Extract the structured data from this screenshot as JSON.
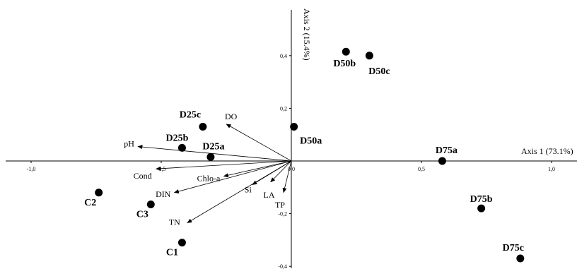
{
  "chart_data": {
    "type": "scatter",
    "title": "",
    "xlabel": "Axis 1 (73.1%)",
    "ylabel": "Axis 2 (15.4%)",
    "xlim": [
      -1.08,
      1.18
    ],
    "ylim": [
      -0.41,
      0.57
    ],
    "x_ticks": [
      {
        "value": -1.0,
        "label": "-1,0"
      },
      {
        "value": -0.5,
        "label": "-0,5"
      },
      {
        "value": 0.0,
        "label": "0,0"
      },
      {
        "value": 0.5,
        "label": "0,5"
      },
      {
        "value": 1.0,
        "label": "1,0"
      }
    ],
    "y_ticks": [
      {
        "value": 0.4,
        "label": "0,4"
      },
      {
        "value": 0.2,
        "label": "0,2"
      },
      {
        "value": -0.2,
        "label": "-0,2"
      },
      {
        "value": -0.4,
        "label": "-0,4"
      }
    ],
    "grid": false,
    "legend": "none",
    "sites": [
      {
        "name": "D50b",
        "x": 0.21,
        "y": 0.415
      },
      {
        "name": "D50c",
        "x": 0.3,
        "y": 0.4
      },
      {
        "name": "D50a",
        "x": 0.01,
        "y": 0.13
      },
      {
        "name": "D25c",
        "x": -0.34,
        "y": 0.13
      },
      {
        "name": "D25b",
        "x": -0.42,
        "y": 0.05
      },
      {
        "name": "D25a",
        "x": -0.31,
        "y": 0.015
      },
      {
        "name": "D75a",
        "x": 0.58,
        "y": 0.0
      },
      {
        "name": "C2",
        "x": -0.74,
        "y": -0.12
      },
      {
        "name": "C3",
        "x": -0.54,
        "y": -0.165
      },
      {
        "name": "C1",
        "x": -0.42,
        "y": -0.31
      },
      {
        "name": "D75b",
        "x": 0.73,
        "y": -0.18
      },
      {
        "name": "D75c",
        "x": 0.88,
        "y": -0.37
      }
    ],
    "variables": [
      {
        "name": "DO",
        "x": -0.25,
        "y": 0.14
      },
      {
        "name": "pH",
        "x": -0.59,
        "y": 0.055
      },
      {
        "name": "Cond",
        "x": -0.52,
        "y": -0.03
      },
      {
        "name": "Chlo-a",
        "x": -0.26,
        "y": -0.058
      },
      {
        "name": "DIN",
        "x": -0.45,
        "y": -0.12
      },
      {
        "name": "Si",
        "x": -0.15,
        "y": -0.09
      },
      {
        "name": "LA",
        "x": -0.08,
        "y": -0.08
      },
      {
        "name": "TP",
        "x": -0.03,
        "y": -0.12
      },
      {
        "name": "TN",
        "x": -0.4,
        "y": -0.235
      }
    ]
  }
}
